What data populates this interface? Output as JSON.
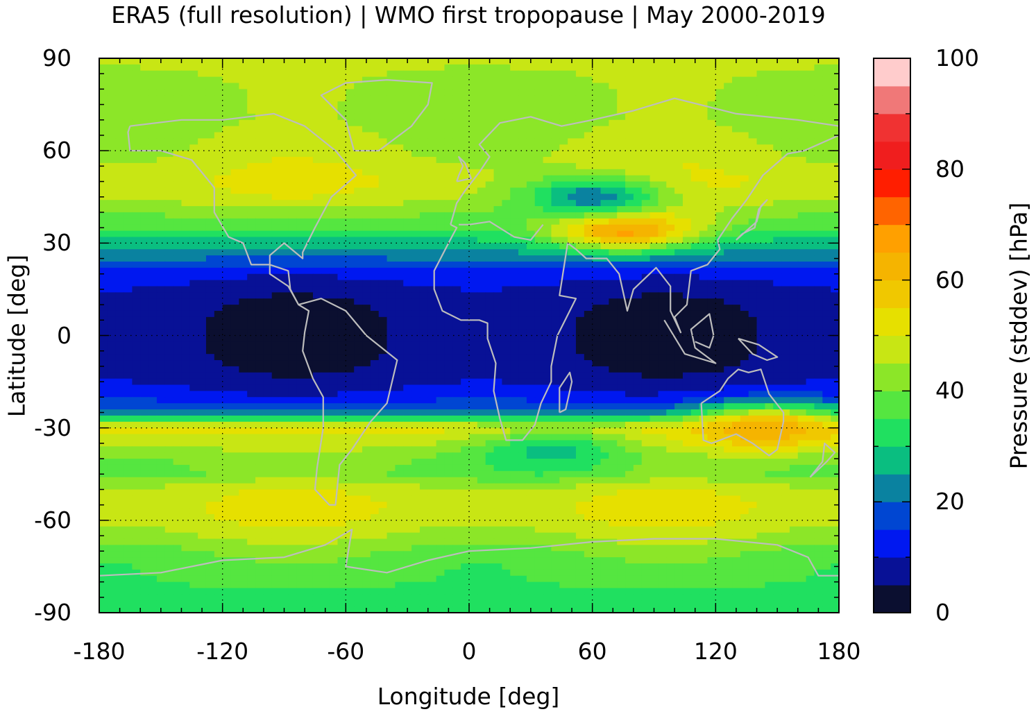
{
  "chart_data": {
    "type": "heatmap",
    "title": "ERA5 (full resolution) | WMO first tropopause | May 2000-2019",
    "xlabel": "Longitude [deg]",
    "ylabel": "Latitude [deg]",
    "xlim": [
      -180,
      180
    ],
    "ylim": [
      -90,
      90
    ],
    "xticks": [
      "-180",
      "-120",
      "-60",
      "0",
      "60",
      "120",
      "180"
    ],
    "yticks": [
      "90",
      "60",
      "30",
      "0",
      "-30",
      "-60",
      "-90"
    ],
    "grid": true,
    "colorbar": {
      "label": "Pressure (stddev) [hPa]",
      "range": [
        0,
        100
      ],
      "step": 5,
      "ticks": [
        "0",
        "20",
        "40",
        "60",
        "80",
        "100"
      ],
      "colors": [
        "#0b0f30",
        "#081196",
        "#0018f0",
        "#0046d2",
        "#0a82a0",
        "#0abe80",
        "#20e060",
        "#55e640",
        "#8ce628",
        "#c8e614",
        "#e6e000",
        "#f0c800",
        "#f5b400",
        "#ffa000",
        "#ff6400",
        "#ff1e00",
        "#f01e1e",
        "#f03232",
        "#f07878",
        "#ffcccc"
      ]
    },
    "zonal_profile": {
      "latitude": [
        90,
        80,
        70,
        60,
        50,
        45,
        40,
        35,
        30,
        25,
        20,
        15,
        10,
        5,
        0,
        -5,
        -10,
        -15,
        -20,
        -25,
        -30,
        -35,
        -40,
        -45,
        -50,
        -55,
        -60,
        -65,
        -70,
        -75,
        -80,
        -85,
        -90
      ],
      "stddev_hPa": [
        46,
        44,
        43,
        46,
        50,
        48,
        42,
        36,
        28,
        20,
        12,
        8,
        6,
        5,
        5,
        5,
        6,
        8,
        12,
        22,
        52,
        47,
        41,
        40,
        48,
        50,
        49,
        45,
        40,
        37,
        36,
        32,
        30
      ]
    },
    "features": [
      {
        "lon": 75,
        "lat": 35,
        "stddev_hPa": 70
      },
      {
        "lon": 145,
        "lat": -30,
        "stddev_hPa": 64
      },
      {
        "lon": 60,
        "lat": 45,
        "stddev_hPa": 22
      },
      {
        "lon": 40,
        "lat": -38,
        "stddev_hPa": 28
      }
    ]
  }
}
